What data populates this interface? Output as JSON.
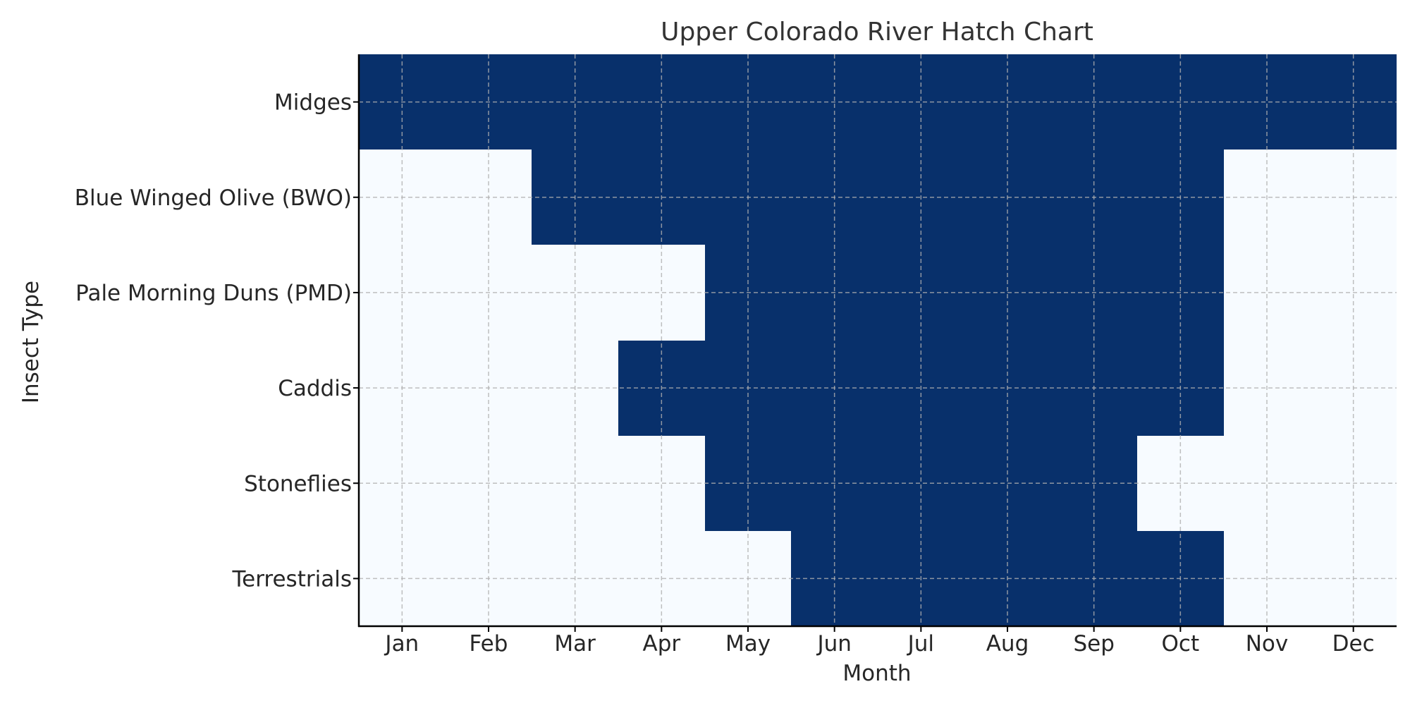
{
  "chart_data": {
    "type": "heatmap",
    "title": "Upper Colorado River Hatch Chart",
    "xlabel": "Month",
    "ylabel": "Insect Type",
    "x": [
      "Jan",
      "Feb",
      "Mar",
      "Apr",
      "May",
      "Jun",
      "Jul",
      "Aug",
      "Sep",
      "Oct",
      "Nov",
      "Dec"
    ],
    "y": [
      "Midges",
      "Blue Winged Olive (BWO)",
      "Pale Morning Duns (PMD)",
      "Caddis",
      "Stoneflies",
      "Terrestrials"
    ],
    "values": [
      [
        1,
        1,
        1,
        1,
        1,
        1,
        1,
        1,
        1,
        1,
        1,
        1
      ],
      [
        0,
        0,
        1,
        1,
        1,
        1,
        1,
        1,
        1,
        1,
        0,
        0
      ],
      [
        0,
        0,
        0,
        0,
        1,
        1,
        1,
        1,
        1,
        1,
        0,
        0
      ],
      [
        0,
        0,
        0,
        1,
        1,
        1,
        1,
        1,
        1,
        1,
        0,
        0
      ],
      [
        0,
        0,
        0,
        0,
        1,
        1,
        1,
        1,
        1,
        0,
        0,
        0
      ],
      [
        0,
        0,
        0,
        0,
        0,
        1,
        1,
        1,
        1,
        1,
        0,
        0
      ]
    ],
    "colors": {
      "active": "#08306b",
      "inactive": "#f7fbff",
      "grid": "#b0b0b0",
      "axis": "#000000",
      "text": "#262626",
      "title": "#333333"
    },
    "grid": true,
    "legend": false
  }
}
